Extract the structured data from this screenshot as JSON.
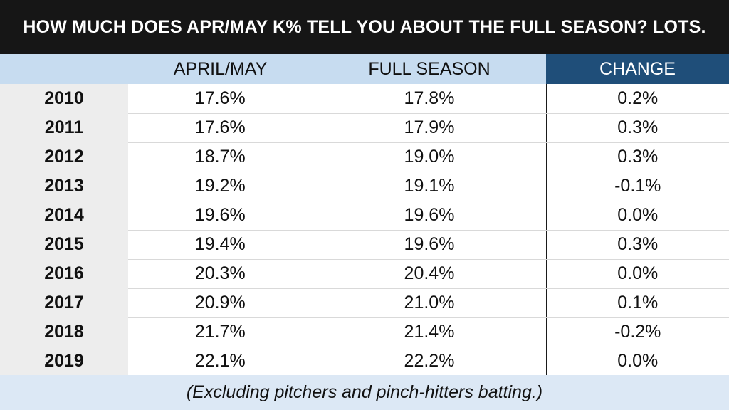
{
  "title": "HOW MUCH DOES APR/MAY K% TELL YOU ABOUT THE FULL SEASON? LOTS.",
  "footnote": "(Excluding pitchers and pinch-hitters batting.)",
  "colors": {
    "title_bg": "#161616",
    "header_bg": "#c7dcf0",
    "change_header_bg": "#1f4e79",
    "year_col_bg": "#ededed",
    "footer_bg": "#dce8f5"
  },
  "chart_data": {
    "type": "table",
    "title": "HOW MUCH DOES APR/MAY K% TELL YOU ABOUT THE FULL SEASON? LOTS.",
    "columns": [
      "",
      "APRIL/MAY",
      "FULL SEASON",
      "CHANGE"
    ],
    "rows": [
      {
        "year": "2010",
        "april_may": "17.6%",
        "full_season": "17.8%",
        "change": "0.2%"
      },
      {
        "year": "2011",
        "april_may": "17.6%",
        "full_season": "17.9%",
        "change": "0.3%"
      },
      {
        "year": "2012",
        "april_may": "18.7%",
        "full_season": "19.0%",
        "change": "0.3%"
      },
      {
        "year": "2013",
        "april_may": "19.2%",
        "full_season": "19.1%",
        "change": "-0.1%"
      },
      {
        "year": "2014",
        "april_may": "19.6%",
        "full_season": "19.6%",
        "change": "0.0%"
      },
      {
        "year": "2015",
        "april_may": "19.4%",
        "full_season": "19.6%",
        "change": "0.3%"
      },
      {
        "year": "2016",
        "april_may": "20.3%",
        "full_season": "20.4%",
        "change": "0.0%"
      },
      {
        "year": "2017",
        "april_may": "20.9%",
        "full_season": "21.0%",
        "change": "0.1%"
      },
      {
        "year": "2018",
        "april_may": "21.7%",
        "full_season": "21.4%",
        "change": "-0.2%"
      },
      {
        "year": "2019",
        "april_may": "22.1%",
        "full_season": "22.2%",
        "change": "0.0%"
      }
    ]
  }
}
